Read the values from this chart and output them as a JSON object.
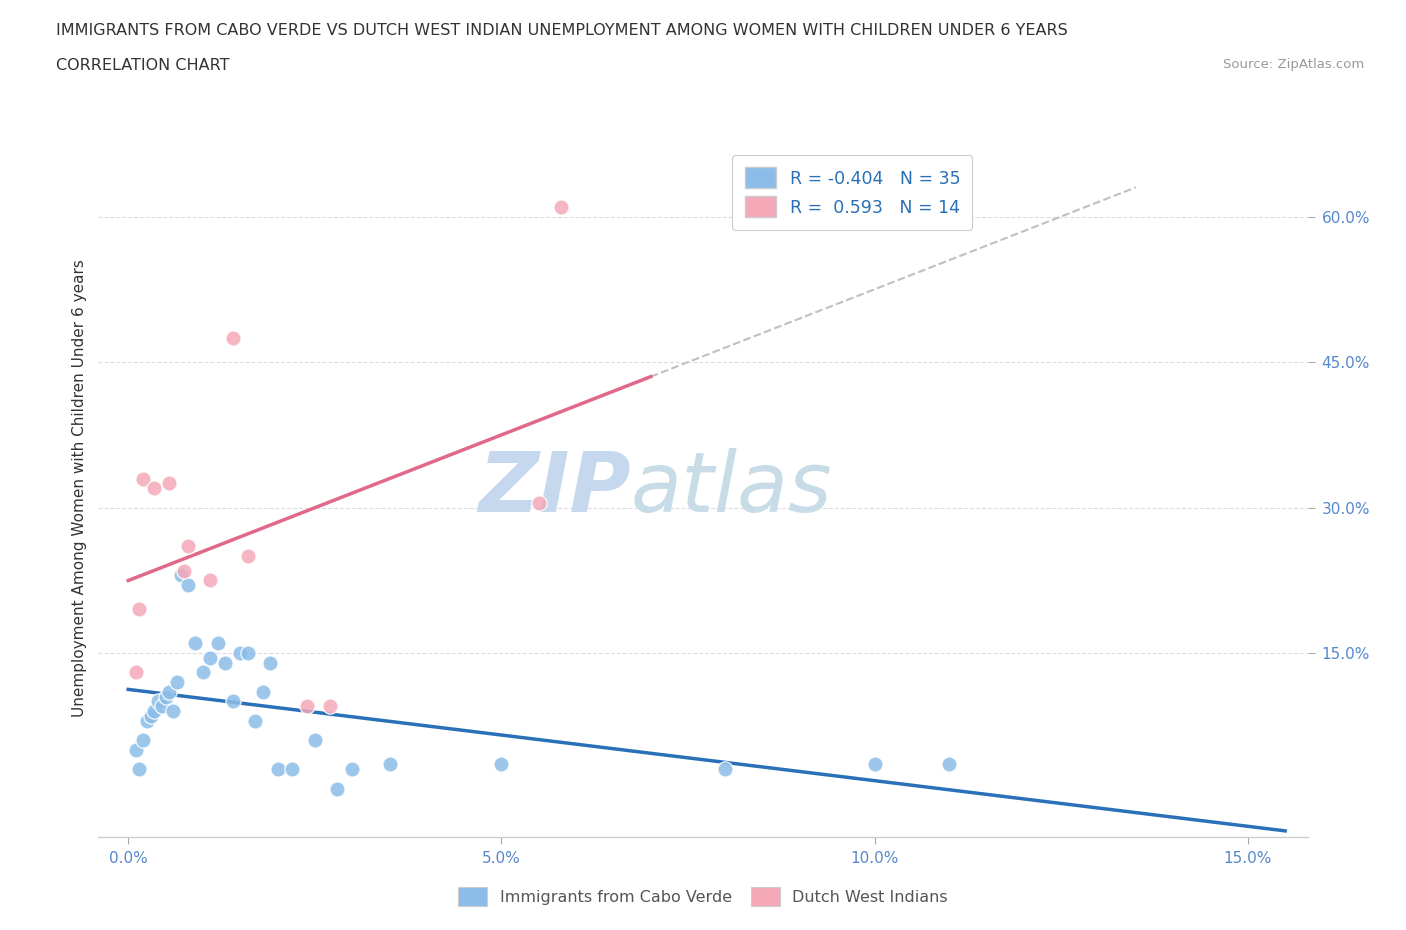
{
  "title_line1": "IMMIGRANTS FROM CABO VERDE VS DUTCH WEST INDIAN UNEMPLOYMENT AMONG WOMEN WITH CHILDREN UNDER 6 YEARS",
  "title_line2": "CORRELATION CHART",
  "source_text": "Source: ZipAtlas.com",
  "ylabel": "Unemployment Among Women with Children Under 6 years",
  "x_tick_labels": [
    "0.0%",
    "",
    "",
    "5.0%",
    "",
    "",
    "10.0%",
    "",
    "",
    "15.0%"
  ],
  "x_tick_vals": [
    0.0,
    0.5,
    1.0,
    1.5,
    2.0,
    2.5,
    3.0,
    3.5,
    4.0,
    4.5
  ],
  "y_tick_labels": [
    "15.0%",
    "30.0%",
    "45.0%",
    "60.0%"
  ],
  "y_tick_vals": [
    15.0,
    30.0,
    45.0,
    60.0
  ],
  "xlim": [
    -0.1,
    4.8
  ],
  "ylim": [
    -4.0,
    68.0
  ],
  "blue_color": "#8bbde8",
  "pink_color": "#f5a8b8",
  "blue_line_color": "#2970b8",
  "pink_line_color": "#e06888",
  "dashed_line_color": "#c0c0c0",
  "watermark_color": "#d0dff0",
  "legend_label_blue": "Immigrants from Cabo Verde",
  "legend_label_pink": "Dutch West Indians",
  "legend_r_blue": "R = -0.404",
  "legend_n_blue": "N = 35",
  "legend_r_pink": "R =  0.593",
  "legend_n_pink": "N = 14",
  "blue_x": [
    0.02,
    0.03,
    0.04,
    0.05,
    0.06,
    0.06,
    0.07,
    0.08,
    0.09,
    0.1,
    0.11,
    0.12,
    0.13,
    0.14,
    0.15,
    0.16,
    0.17,
    0.2,
    0.22,
    0.25,
    0.27,
    0.28,
    0.3,
    0.32,
    0.33,
    0.35,
    0.4,
    0.42,
    0.45,
    0.5,
    0.57,
    1.0,
    1.6,
    2.0,
    2.2
  ],
  "blue_y": [
    5.0,
    3.0,
    6.0,
    8.0,
    8.0,
    9.5,
    9.0,
    10.0,
    12.0,
    9.5,
    10.5,
    11.0,
    9.0,
    23.0,
    22.0,
    16.0,
    13.0,
    14.5,
    16.0,
    14.0,
    16.0,
    12.0,
    10.0,
    15.0,
    15.0,
    8.0,
    11.0,
    14.0,
    3.0,
    3.0,
    6.0,
    1.0,
    3.0,
    3.5,
    3.5
  ],
  "pink_x": [
    0.02,
    0.03,
    0.04,
    0.06,
    0.1,
    0.14,
    0.15,
    0.2,
    0.26,
    0.3,
    0.44,
    0.5,
    1.0,
    1.1
  ],
  "pink_y": [
    13.0,
    19.5,
    33.0,
    32.0,
    32.5,
    23.5,
    26.0,
    22.5,
    47.5,
    25.0,
    9.5,
    9.5,
    30.5,
    61.0
  ],
  "background_color": "#ffffff",
  "grid_color": "#dddddd",
  "tick_color": "#5588cc",
  "text_color": "#333333",
  "source_color": "#999999"
}
